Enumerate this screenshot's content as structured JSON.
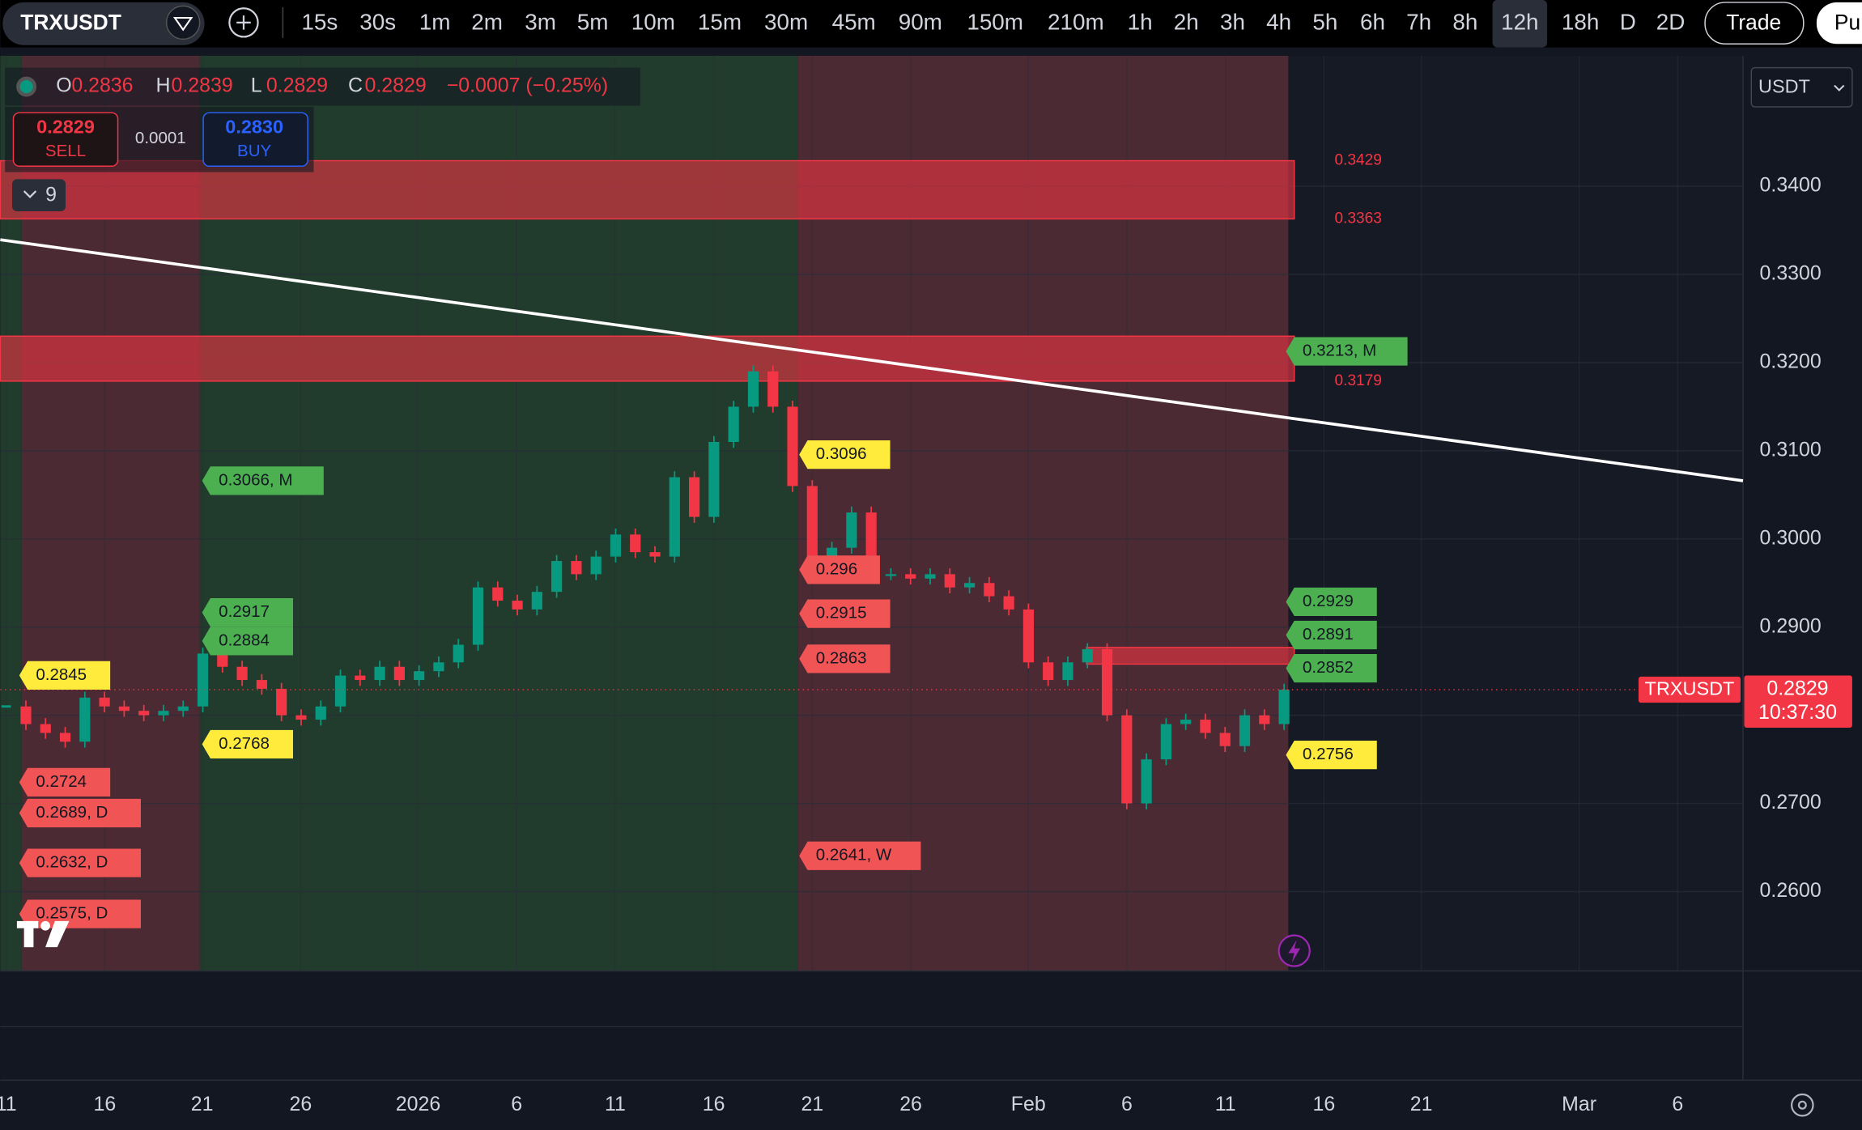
{
  "toolbar": {
    "symbol": "TRXUSDT",
    "intervals": [
      "15s",
      "30s",
      "1m",
      "2m",
      "3m",
      "5m",
      "10m",
      "15m",
      "30m",
      "45m",
      "90m",
      "150m",
      "210m",
      "1h",
      "2h",
      "3h",
      "4h",
      "5h",
      "6h",
      "7h",
      "8h",
      "12h",
      "18h",
      "D",
      "2D"
    ],
    "active_interval": 21,
    "trade": "Trade",
    "publish": "Pu"
  },
  "legend": {
    "o_label": "O",
    "open": "0.2836",
    "h_label": "H",
    "high": "0.2839",
    "l_label": "L",
    "low": "0.2829",
    "c_label": "C",
    "close": "0.2829",
    "change": "−0.0007 (−0.25%)"
  },
  "order": {
    "sell_price": "0.2829",
    "sell": "SELL",
    "spread": "0.0001",
    "buy_price": "0.2830",
    "buy": "BUY"
  },
  "indicators_count": "9",
  "currency": "USDT",
  "price_tag": {
    "symbol": "TRXUSDT",
    "price": "0.2829",
    "countdown": "10:37:30"
  },
  "chart_data": {
    "type": "candlestick",
    "closes": [
      0.281,
      0.279,
      0.278,
      0.277,
      0.282,
      0.281,
      0.2805,
      0.28,
      0.2805,
      0.281,
      0.287,
      0.2855,
      0.284,
      0.283,
      0.28,
      0.2795,
      0.281,
      0.2845,
      0.284,
      0.2855,
      0.284,
      0.285,
      0.286,
      0.288,
      0.2945,
      0.293,
      0.292,
      0.294,
      0.2975,
      0.296,
      0.298,
      0.3005,
      0.2985,
      0.298,
      0.307,
      0.3025,
      0.311,
      0.315,
      0.319,
      0.315,
      0.306,
      0.296,
      0.299,
      0.303,
      0.296,
      0.296,
      0.2955,
      0.296,
      0.2945,
      0.295,
      0.2935,
      0.292,
      0.286,
      0.284,
      0.286,
      0.2875,
      0.28,
      0.27,
      0.275,
      0.279,
      0.2795,
      0.278,
      0.2765,
      0.28,
      0.279,
      0.2829
    ],
    "up_color": "#089981",
    "down_color": "#f23645",
    "ylim": [
      0.251,
      0.3548
    ],
    "yticks": [
      {
        "value": 0.26,
        "label": "0.2600"
      },
      {
        "value": 0.27,
        "label": "0.2700"
      },
      {
        "value": 0.28,
        "label": "0.2800"
      },
      {
        "value": 0.29,
        "label": "0.2900"
      },
      {
        "value": 0.3,
        "label": "0.3000"
      },
      {
        "value": 0.31,
        "label": "0.3100"
      },
      {
        "value": 0.32,
        "label": "0.3200"
      },
      {
        "value": 0.33,
        "label": "0.3300"
      },
      {
        "value": 0.34,
        "label": "0.3400"
      }
    ],
    "x_labels": [
      "11",
      "16",
      "21",
      "26",
      "2026",
      "6",
      "11",
      "16",
      "21",
      "26",
      "Feb",
      "6",
      "11",
      "16",
      "21",
      "Mar",
      "6"
    ],
    "zones": [
      {
        "top": {
          "value": 0.3429,
          "label": "0.3429"
        },
        "bottom": {
          "value": 0.3363,
          "label": "0.3363"
        }
      },
      {
        "top": 0.323,
        "bottom": {
          "value": 0.3179,
          "label": "0.3179"
        }
      },
      {
        "top": 0.2877,
        "bottom": 0.2858
      }
    ],
    "tags": [
      {
        "text": "0.3066, M",
        "color": "#4caf50"
      },
      {
        "text": "0.2917",
        "color": "#4caf50"
      },
      {
        "text": "0.2884",
        "color": "#4caf50"
      },
      {
        "text": "0.2845",
        "color": "#ffeb3b"
      },
      {
        "text": "0.2768",
        "color": "#ffeb3b"
      },
      {
        "text": "0.3096",
        "color": "#ffeb3b"
      },
      {
        "text": "0.296",
        "color": "#f05454"
      },
      {
        "text": "0.2915",
        "color": "#f05454"
      },
      {
        "text": "0.2863",
        "color": "#f05454"
      },
      {
        "text": "0.2641, W",
        "color": "#f05454"
      },
      {
        "text": "0.3213, M",
        "color": "#4caf50"
      },
      {
        "text": "0.2929",
        "color": "#4caf50"
      },
      {
        "text": "0.2891",
        "color": "#4caf50"
      },
      {
        "text": "0.2852",
        "color": "#4caf50"
      },
      {
        "text": "0.2756",
        "color": "#ffeb3b"
      },
      {
        "text": "0.2724",
        "color": "#f05454"
      },
      {
        "text": "0.2689, D",
        "color": "#f05454"
      },
      {
        "text": "0.2632, D",
        "color": "#f05454"
      },
      {
        "text": "0.2575, D",
        "color": "#f05454"
      }
    ]
  }
}
